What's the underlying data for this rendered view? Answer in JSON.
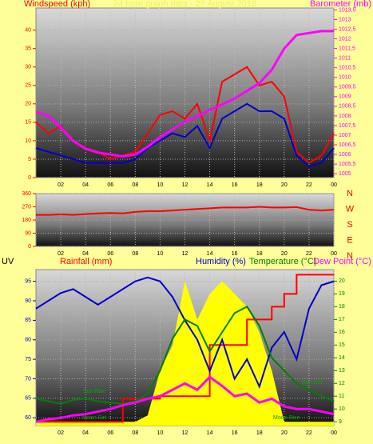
{
  "chart_data": [
    {
      "type": "line",
      "title": "24 hour graph data - 25 August 2010",
      "y_label": "Windspeed (kph)",
      "y2_label": "Barometer (mb)",
      "x": [
        0,
        1,
        2,
        3,
        4,
        5,
        6,
        7,
        8,
        9,
        10,
        11,
        12,
        13,
        14,
        15,
        16,
        17,
        18,
        19,
        20,
        21,
        22,
        23,
        24
      ],
      "xlim": [
        0,
        24
      ],
      "xticks": [
        {
          "value": 2,
          "label": "02"
        },
        {
          "value": 4,
          "label": "04"
        },
        {
          "value": 6,
          "label": "06"
        },
        {
          "value": 8,
          "label": "08"
        },
        10,
        12,
        14,
        16,
        18,
        20,
        22,
        {
          "value": 24,
          "label": "00"
        }
      ],
      "ylim": [
        0,
        46
      ],
      "yticks": [
        0,
        5,
        10,
        15,
        20,
        25,
        30,
        35,
        40
      ],
      "y_color": "#ff0000",
      "y2lim": [
        1004.8,
        1013.6
      ],
      "y2ticks": [
        1005,
        {
          "value": 1005.5,
          "label": "1005,5"
        },
        1006,
        {
          "value": 1006.5,
          "label": "1006,5"
        },
        1007,
        {
          "value": 1007.5,
          "label": "1007,5"
        },
        1008,
        {
          "value": 1008.5,
          "label": "1008,5"
        },
        1009,
        {
          "value": 1009.5,
          "label": "1009,5"
        },
        1010,
        {
          "value": 1010.5,
          "label": "1010,5"
        },
        1011,
        {
          "value": 1011.5,
          "label": "1011,5"
        },
        1012,
        {
          "value": 1012.5,
          "label": "1012,5"
        },
        1013,
        {
          "value": 1013.5,
          "label": "1013,5"
        }
      ],
      "y2_color": "#ff00ff",
      "grid": true,
      "series": [
        {
          "color": "#ff0000",
          "width": 2,
          "values": [
            15,
            12,
            14,
            10,
            8,
            7,
            5,
            6,
            7,
            12,
            17,
            18,
            16,
            20,
            10,
            26,
            28,
            30,
            25,
            26,
            22,
            7,
            4,
            6,
            12
          ]
        },
        {
          "color": "#0000cc",
          "width": 2,
          "values": [
            8,
            7,
            6,
            5,
            4,
            4,
            4,
            4,
            5,
            8,
            10,
            12,
            11,
            14,
            8,
            16,
            18,
            20,
            18,
            18,
            16,
            6,
            3,
            4,
            8
          ]
        },
        {
          "color": "#ff00ff",
          "width": 3,
          "axis": "y2",
          "values": [
            1008.2,
            1008,
            1007.4,
            1006.7,
            1006.3,
            1006.1,
            1006,
            1005.9,
            1006,
            1006.4,
            1006.9,
            1007.3,
            1007.7,
            1008,
            1008.3,
            1008.6,
            1008.9,
            1009.3,
            1009.7,
            1010.4,
            1011.5,
            1012.2,
            1012.3,
            1012.4,
            1012.4
          ]
        }
      ]
    },
    {
      "type": "line",
      "x": [
        0,
        1,
        2,
        3,
        4,
        5,
        6,
        7,
        8,
        9,
        10,
        11,
        12,
        13,
        14,
        15,
        16,
        17,
        18,
        19,
        20,
        21,
        22,
        23,
        24
      ],
      "xlim": [
        0,
        24
      ],
      "xticks": [
        {
          "value": 2,
          "label": "02"
        },
        {
          "value": 4,
          "label": "04"
        },
        {
          "value": 6,
          "label": "06"
        },
        {
          "value": 8,
          "label": "08"
        },
        10,
        12,
        14,
        16,
        18,
        20,
        22,
        {
          "value": 24,
          "label": "00"
        }
      ],
      "ylim": [
        0,
        360
      ],
      "yticks": [
        0,
        90,
        180,
        270,
        360
      ],
      "y_color": "#ff0000",
      "y2_labels": [
        "N",
        "W",
        "S",
        "E",
        "N"
      ],
      "y2_color": "#ff0000",
      "grid": true,
      "series": [
        {
          "color": "#ff0000",
          "width": 2,
          "values": [
            215,
            215,
            218,
            215,
            220,
            225,
            228,
            225,
            235,
            240,
            240,
            245,
            250,
            255,
            260,
            265,
            265,
            265,
            270,
            265,
            265,
            268,
            250,
            245,
            250
          ]
        }
      ]
    },
    {
      "type": "line",
      "x": [
        0,
        1,
        2,
        3,
        4,
        5,
        6,
        7,
        8,
        9,
        10,
        11,
        12,
        13,
        14,
        15,
        16,
        17,
        18,
        19,
        20,
        21,
        22,
        23,
        24
      ],
      "xlim": [
        0,
        24
      ],
      "xticks": [
        {
          "value": 2,
          "label": "02"
        },
        {
          "value": 4,
          "label": "04"
        },
        {
          "value": 6,
          "label": "06"
        },
        {
          "value": 8,
          "label": "08"
        },
        10,
        12,
        14,
        16,
        18,
        20,
        22,
        {
          "value": 24,
          "label": "00"
        }
      ],
      "ylim": [
        58,
        98
      ],
      "yticks": [
        60,
        65,
        70,
        75,
        80,
        85,
        90,
        95
      ],
      "y_color": "#0000cc",
      "y2lim": [
        8.7,
        20.9
      ],
      "y2ticks": [
        9,
        10,
        11,
        12,
        13,
        14,
        15,
        16,
        17,
        18,
        19,
        20
      ],
      "y2_color": "#008000",
      "grid": true,
      "annotations": [
        "Sun Rise",
        "Sun Set",
        "Moon Set",
        "Moon Rise"
      ],
      "series": [
        {
          "name": "UV",
          "color": "#ffff00",
          "kind": "area",
          "axis": "y2",
          "values": [
            9,
            9,
            9,
            9,
            9,
            9,
            9,
            9,
            9,
            9.5,
            13,
            15,
            20,
            17,
            19,
            20,
            19,
            18,
            16,
            13,
            9,
            9,
            9,
            9,
            9
          ]
        },
        {
          "name": "Rainfall (mm)",
          "color": "#ff0000",
          "kind": "step",
          "axis": "y2",
          "width": 2,
          "values": [
            9,
            9,
            9,
            9,
            9,
            9,
            9,
            10.8,
            10.8,
            10.8,
            11,
            11,
            11,
            11,
            15,
            15,
            15,
            17,
            17,
            18,
            19,
            20.5,
            20.5,
            20.5,
            20.5
          ]
        },
        {
          "name": "Humidity (%)",
          "color": "#0000cc",
          "width": 2,
          "values": [
            88,
            90,
            92,
            93,
            91,
            89,
            91,
            93,
            95,
            96,
            95,
            91,
            85,
            80,
            72,
            80,
            70,
            75,
            68,
            78,
            82,
            75,
            88,
            94,
            95
          ]
        },
        {
          "name": "Temperature (°C)",
          "color": "#008000",
          "width": 2,
          "axis": "y2",
          "values": [
            10.8,
            10.6,
            10.4,
            10.7,
            10.8,
            10.6,
            10.5,
            10.4,
            10.6,
            11.2,
            13,
            15.5,
            17,
            16.5,
            14.5,
            16,
            17.5,
            18,
            16.5,
            14,
            13,
            12,
            11.5,
            11,
            10.6
          ]
        },
        {
          "name": "Dew Point (°C)",
          "color": "#ff00ff",
          "width": 3,
          "axis": "y2",
          "values": [
            9,
            9.2,
            9.3,
            9.5,
            9.6,
            9.8,
            10,
            10.3,
            10.5,
            10.8,
            11,
            11.5,
            12,
            11.5,
            12.5,
            11.8,
            11,
            11.2,
            10.5,
            10.8,
            10.2,
            10,
            10,
            9.8,
            9.6
          ]
        }
      ]
    }
  ]
}
